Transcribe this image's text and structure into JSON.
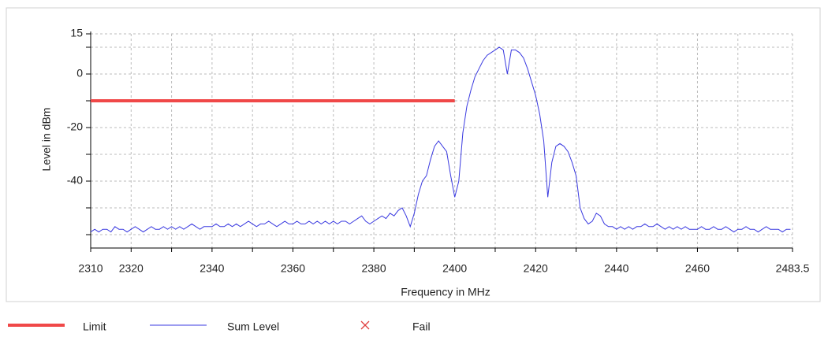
{
  "chart_data": {
    "type": "line",
    "xlabel": "Frequency in MHz",
    "ylabel": "Level in dBm",
    "xlim": [
      2310,
      2483.5
    ],
    "ylim": [
      -65,
      15
    ],
    "xticks": [
      2310,
      2320,
      2340,
      2360,
      2380,
      2400,
      2420,
      2440,
      2460,
      2483.5
    ],
    "xminor_ticks": [
      2330,
      2350,
      2370,
      2390,
      2410,
      2430,
      2450,
      2470
    ],
    "yticks": [
      15,
      0,
      -20,
      -40
    ],
    "yminor_ticks": [
      10,
      -10,
      -30,
      -50,
      -60
    ],
    "grid": true,
    "legend": "bottom",
    "series": [
      {
        "name": "Limit",
        "color": "#f04848",
        "width": 4,
        "x": [
          2310,
          2400
        ],
        "values": [
          -10,
          -10
        ]
      },
      {
        "name": "Sum Level",
        "color": "#3a3ae0",
        "width": 1,
        "x": [
          2310,
          2311,
          2312,
          2313,
          2314,
          2315,
          2316,
          2317,
          2318,
          2319,
          2320,
          2321,
          2322,
          2323,
          2324,
          2325,
          2326,
          2327,
          2328,
          2329,
          2330,
          2331,
          2332,
          2333,
          2334,
          2335,
          2336,
          2337,
          2338,
          2339,
          2340,
          2341,
          2342,
          2343,
          2344,
          2345,
          2346,
          2347,
          2348,
          2349,
          2350,
          2351,
          2352,
          2353,
          2354,
          2355,
          2356,
          2357,
          2358,
          2359,
          2360,
          2361,
          2362,
          2363,
          2364,
          2365,
          2366,
          2367,
          2368,
          2369,
          2370,
          2371,
          2372,
          2373,
          2374,
          2375,
          2376,
          2377,
          2378,
          2379,
          2380,
          2381,
          2382,
          2383,
          2384,
          2385,
          2386,
          2387,
          2388,
          2389,
          2390,
          2391,
          2392,
          2393,
          2394,
          2395,
          2396,
          2397,
          2398,
          2399,
          2400,
          2401,
          2402,
          2403,
          2404,
          2405,
          2406,
          2407,
          2408,
          2409,
          2410,
          2411,
          2412,
          2413,
          2414,
          2415,
          2416,
          2417,
          2418,
          2419,
          2420,
          2421,
          2422,
          2423,
          2424,
          2425,
          2426,
          2427,
          2428,
          2429,
          2430,
          2431,
          2432,
          2433,
          2434,
          2435,
          2436,
          2437,
          2438,
          2439,
          2440,
          2441,
          2442,
          2443,
          2444,
          2445,
          2446,
          2447,
          2448,
          2449,
          2450,
          2451,
          2452,
          2453,
          2454,
          2455,
          2456,
          2457,
          2458,
          2459,
          2460,
          2461,
          2462,
          2463,
          2464,
          2465,
          2466,
          2467,
          2468,
          2469,
          2470,
          2471,
          2472,
          2473,
          2474,
          2475,
          2476,
          2477,
          2478,
          2479,
          2480,
          2481,
          2482,
          2483
        ],
        "values": [
          -59,
          -58,
          -59,
          -58,
          -58,
          -59,
          -57,
          -58,
          -58,
          -59,
          -58,
          -57,
          -58,
          -59,
          -58,
          -57,
          -58,
          -58,
          -57,
          -58,
          -57,
          -58,
          -57,
          -58,
          -57,
          -56,
          -57,
          -58,
          -57,
          -57,
          -57,
          -56,
          -57,
          -57,
          -56,
          -57,
          -56,
          -57,
          -56,
          -55,
          -56,
          -57,
          -56,
          -56,
          -55,
          -56,
          -57,
          -56,
          -55,
          -56,
          -56,
          -55,
          -56,
          -56,
          -55,
          -56,
          -55,
          -56,
          -55,
          -56,
          -55,
          -56,
          -55,
          -55,
          -56,
          -55,
          -54,
          -53,
          -55,
          -56,
          -55,
          -54,
          -53,
          -54,
          -52,
          -53,
          -51,
          -50,
          -53,
          -57,
          -52,
          -45,
          -40,
          -38,
          -32,
          -27,
          -25,
          -27,
          -29,
          -38,
          -46,
          -40,
          -22,
          -12,
          -6,
          -1,
          2,
          5,
          7,
          8,
          9,
          10,
          9,
          0,
          9,
          9,
          8,
          6,
          2,
          -3,
          -8,
          -15,
          -25,
          -46,
          -33,
          -27,
          -26,
          -27,
          -29,
          -33,
          -38,
          -50,
          -54,
          -56,
          -55,
          -52,
          -53,
          -56,
          -57,
          -57,
          -58,
          -57,
          -58,
          -57,
          -58,
          -57,
          -57,
          -56,
          -57,
          -57,
          -56,
          -57,
          -58,
          -57,
          -58,
          -57,
          -58,
          -57,
          -58,
          -58,
          -58,
          -57,
          -58,
          -58,
          -57,
          -58,
          -58,
          -57,
          -58,
          -59,
          -58,
          -58,
          -57,
          -58,
          -58,
          -59,
          -58,
          -57,
          -58,
          -58,
          -58,
          -59,
          -58,
          -58
        ]
      },
      {
        "name": "Fail",
        "color": "#e04040",
        "marker": "x",
        "x": [],
        "values": []
      }
    ]
  }
}
